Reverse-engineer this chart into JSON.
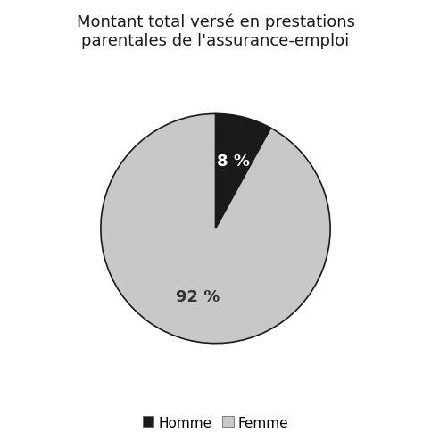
{
  "title": "Montant total versé en prestations\nparentales de l'assurance-emploi",
  "slices": [
    8,
    92
  ],
  "labels": [
    "Homme",
    "Femme"
  ],
  "colors": [
    "#1a1a1a",
    "#c8c8c8"
  ],
  "pct_labels": [
    "8 %",
    "92 %"
  ],
  "pct_colors": [
    "white",
    "#333333"
  ],
  "pct_fontsize": 13,
  "title_fontsize": 13,
  "legend_fontsize": 11,
  "startangle": 90,
  "background_color": "#ffffff"
}
